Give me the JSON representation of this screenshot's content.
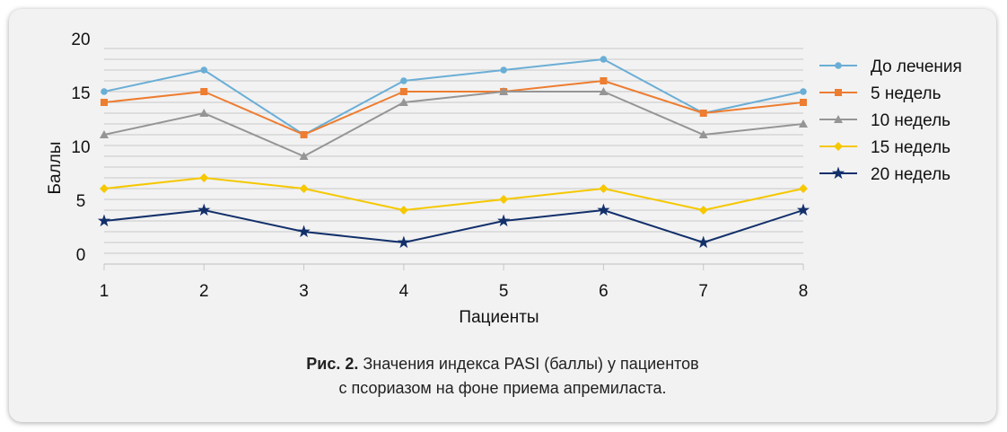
{
  "caption": {
    "prefix": "Рис. 2.",
    "line1": "Значения индекса PASI (баллы) у пациентов",
    "line2": "с псориазом на фоне приема апремиласта."
  },
  "chart_data": {
    "type": "line",
    "title": "",
    "xlabel": "Пациенты",
    "ylabel": "Баллы",
    "x": [
      1,
      2,
      3,
      4,
      5,
      6,
      7,
      8
    ],
    "ylim": [
      0,
      20
    ],
    "yticks": [
      0,
      5,
      10,
      15,
      20
    ],
    "grid": "horizontal minor gridlines every 1 point",
    "legend_position": "right",
    "series": [
      {
        "name": "До лечения",
        "color": "#6aaed6",
        "marker": "circle",
        "values": [
          16,
          18,
          12,
          17,
          18,
          19,
          14,
          16
        ]
      },
      {
        "name": "5 недель",
        "color": "#ed7d31",
        "marker": "square",
        "values": [
          15,
          16,
          12,
          16,
          16,
          17,
          14,
          15
        ]
      },
      {
        "name": "10 недель",
        "color": "#959595",
        "marker": "triangle",
        "values": [
          12,
          14,
          10,
          15,
          16,
          16,
          12,
          13
        ]
      },
      {
        "name": "15 недель",
        "color": "#f5c800",
        "marker": "diamond",
        "values": [
          7,
          8,
          7,
          5,
          6,
          7,
          5,
          7
        ]
      },
      {
        "name": "20 недель",
        "color": "#13306b",
        "marker": "star",
        "values": [
          4,
          5,
          3,
          2,
          4,
          5,
          2,
          5
        ]
      }
    ]
  }
}
